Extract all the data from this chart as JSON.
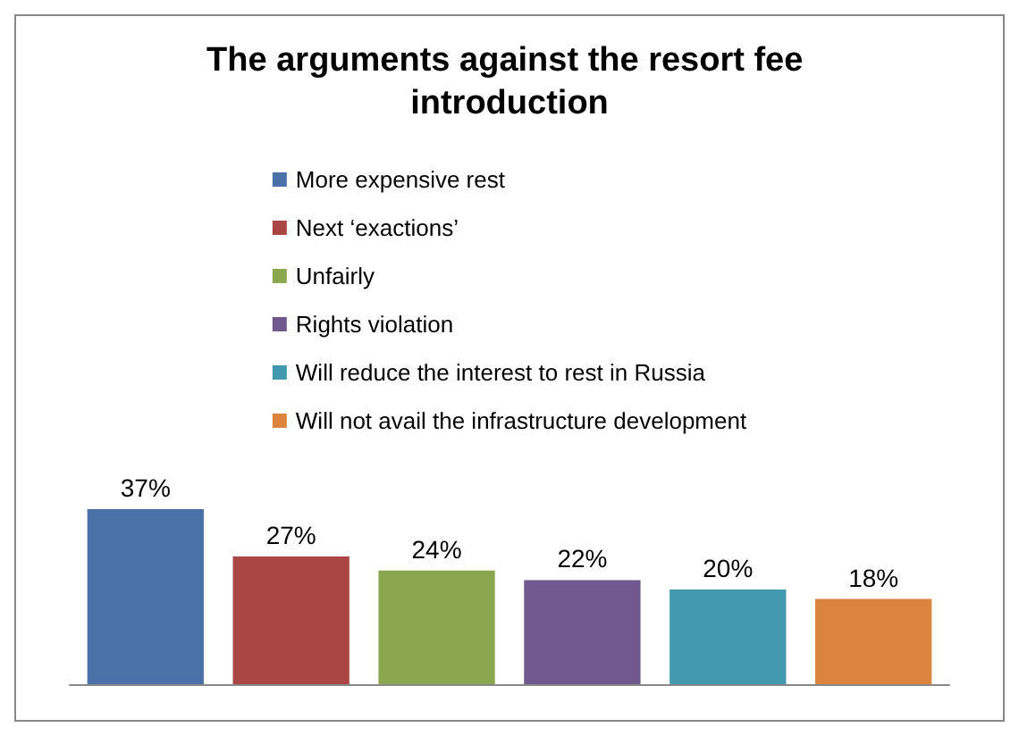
{
  "chart_data": {
    "type": "bar",
    "title": "The arguments against the resort fee introduction",
    "categories": [
      null
    ],
    "legend": "top",
    "series": [
      {
        "name": "More expensive rest",
        "color": "#4a72a8",
        "values": [
          37
        ],
        "value_labels": [
          "37%"
        ]
      },
      {
        "name": "Next ‘exactions’",
        "color": "#aa4644",
        "values": [
          27
        ],
        "value_labels": [
          "27%"
        ]
      },
      {
        "name": "Unfairly",
        "color": "#8aa64f",
        "values": [
          24
        ],
        "value_labels": [
          "24%"
        ]
      },
      {
        "name": "Rights violation",
        "color": "#71588f",
        "values": [
          22
        ],
        "value_labels": [
          "22%"
        ]
      },
      {
        "name": "Will reduce the interest to rest in Russia",
        "color": "#4198af",
        "values": [
          20
        ],
        "value_labels": [
          "20%"
        ]
      },
      {
        "name": "Will not avail the infrastructure development",
        "color": "#db843d",
        "values": [
          18
        ],
        "value_labels": [
          "18%"
        ]
      }
    ]
  }
}
